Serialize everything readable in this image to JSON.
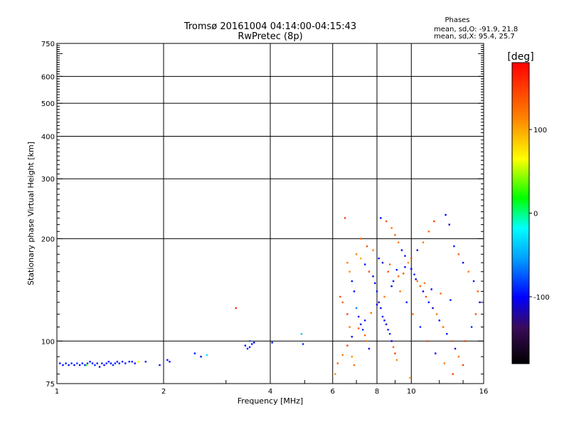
{
  "chart_data": {
    "type": "scatter",
    "title": "Tromsø 20161004 04:14:00-04:15:43",
    "subtitle": "RwPretec (8p)",
    "xlabel": "Frequency [MHz]",
    "ylabel": "Stationary phase Virtual Height [km]",
    "x_scale": "log",
    "y_scale": "log",
    "xlim": [
      1,
      16
    ],
    "ylim": [
      75,
      750
    ],
    "x_ticks": [
      1,
      2,
      4,
      6,
      8,
      10,
      16
    ],
    "x_tick_labels": [
      "1",
      "2",
      "4",
      "6",
      "8",
      "10",
      "16"
    ],
    "y_ticks": [
      75,
      100,
      200,
      300,
      400,
      500,
      600,
      750
    ],
    "y_tick_labels": [
      "75",
      "100",
      "200",
      "300",
      "400",
      "500",
      "600",
      "750"
    ],
    "grid": true,
    "phase_stats": {
      "heading": "Phases",
      "line_o": "mean, sd,O: -91.9, 21.8",
      "line_x": "mean, sd,X:  95.4, 25.7"
    },
    "colorbar": {
      "label": "[deg]",
      "range": [
        -180,
        180
      ],
      "ticks": [
        100,
        0,
        -100
      ],
      "tick_labels": [
        "100",
        "0",
        "-100"
      ]
    },
    "points": [
      [
        1.02,
        86,
        -95
      ],
      [
        1.04,
        85,
        -100
      ],
      [
        1.06,
        86,
        -92
      ],
      [
        1.08,
        85,
        -98
      ],
      [
        1.1,
        86,
        -90
      ],
      [
        1.12,
        85,
        -105
      ],
      [
        1.14,
        86,
        -88
      ],
      [
        1.16,
        85,
        -97
      ],
      [
        1.18,
        86,
        -93
      ],
      [
        1.2,
        85,
        -100
      ],
      [
        1.21,
        85,
        20
      ],
      [
        1.22,
        86,
        -90
      ],
      [
        1.24,
        87,
        -95
      ],
      [
        1.26,
        86,
        -99
      ],
      [
        1.28,
        85,
        -91
      ],
      [
        1.3,
        86,
        -96
      ],
      [
        1.32,
        84,
        -100
      ],
      [
        1.34,
        86,
        -94
      ],
      [
        1.36,
        85,
        -97
      ],
      [
        1.38,
        86,
        -92
      ],
      [
        1.4,
        87,
        -96
      ],
      [
        1.42,
        86,
        -100
      ],
      [
        1.44,
        85,
        -90
      ],
      [
        1.46,
        86,
        -93
      ],
      [
        1.48,
        87,
        -97
      ],
      [
        1.5,
        86,
        -95
      ],
      [
        1.53,
        87,
        -99
      ],
      [
        1.56,
        86,
        -92
      ],
      [
        1.6,
        87,
        -96
      ],
      [
        1.63,
        87,
        -94
      ],
      [
        1.66,
        86,
        -98
      ],
      [
        1.7,
        87,
        60
      ],
      [
        1.78,
        87,
        -95
      ],
      [
        1.95,
        85,
        -98
      ],
      [
        2.05,
        88,
        -94
      ],
      [
        2.08,
        87,
        -100
      ],
      [
        2.45,
        92,
        -95
      ],
      [
        2.55,
        90,
        -110
      ],
      [
        2.65,
        91,
        -30
      ],
      [
        3.2,
        125,
        160
      ],
      [
        3.4,
        97,
        -98
      ],
      [
        3.45,
        95,
        -94
      ],
      [
        3.5,
        96,
        -90
      ],
      [
        3.55,
        98,
        -96
      ],
      [
        3.6,
        99,
        -100
      ],
      [
        3.5,
        100,
        -70
      ],
      [
        4.05,
        99,
        -95
      ],
      [
        4.9,
        105,
        -40
      ],
      [
        4.95,
        98,
        -90
      ],
      [
        6.5,
        230,
        150
      ],
      [
        6.6,
        170,
        120
      ],
      [
        6.7,
        160,
        110
      ],
      [
        6.8,
        150,
        -95
      ],
      [
        6.9,
        140,
        -100
      ],
      [
        7.0,
        125,
        -60
      ],
      [
        7.1,
        118,
        -105
      ],
      [
        7.2,
        112,
        -95
      ],
      [
        7.3,
        108,
        -90
      ],
      [
        7.4,
        104,
        130
      ],
      [
        7.5,
        100,
        120
      ],
      [
        7.6,
        95,
        -100
      ],
      [
        6.3,
        135,
        140
      ],
      [
        6.4,
        130,
        130
      ],
      [
        6.6,
        120,
        150
      ],
      [
        6.7,
        110,
        120
      ],
      [
        6.8,
        90,
        110
      ],
      [
        6.9,
        85,
        125
      ],
      [
        7.0,
        180,
        115
      ],
      [
        7.2,
        175,
        100
      ],
      [
        7.4,
        168,
        -95
      ],
      [
        7.6,
        160,
        140
      ],
      [
        7.8,
        155,
        -110
      ],
      [
        7.9,
        148,
        -100
      ],
      [
        8.0,
        140,
        -95
      ],
      [
        8.1,
        130,
        -105
      ],
      [
        8.2,
        125,
        -98
      ],
      [
        8.3,
        118,
        -92
      ],
      [
        8.4,
        115,
        -100
      ],
      [
        8.5,
        112,
        -110
      ],
      [
        8.6,
        108,
        -95
      ],
      [
        8.7,
        105,
        -90
      ],
      [
        8.8,
        100,
        -100
      ],
      [
        8.9,
        96,
        130
      ],
      [
        9.0,
        92,
        150
      ],
      [
        9.1,
        88,
        110
      ],
      [
        8.2,
        230,
        -100
      ],
      [
        8.5,
        225,
        140
      ],
      [
        8.8,
        215,
        120
      ],
      [
        9.0,
        205,
        130
      ],
      [
        9.2,
        195,
        120
      ],
      [
        9.4,
        185,
        -100
      ],
      [
        9.6,
        178,
        -95
      ],
      [
        9.8,
        170,
        110
      ],
      [
        10.0,
        163,
        -100
      ],
      [
        10.2,
        157,
        -90
      ],
      [
        10.4,
        150,
        120
      ],
      [
        10.6,
        145,
        130
      ],
      [
        10.8,
        140,
        -100
      ],
      [
        11.0,
        135,
        140
      ],
      [
        11.2,
        130,
        -95
      ],
      [
        11.5,
        125,
        -110
      ],
      [
        11.8,
        120,
        120
      ],
      [
        12.0,
        115,
        -100
      ],
      [
        12.3,
        110,
        130
      ],
      [
        12.6,
        105,
        -95
      ],
      [
        13.0,
        100,
        140
      ],
      [
        13.3,
        95,
        -100
      ],
      [
        13.6,
        90,
        120
      ],
      [
        14.0,
        85,
        150
      ],
      [
        12.5,
        235,
        -100
      ],
      [
        12.8,
        220,
        -110
      ],
      [
        13.2,
        190,
        -95
      ],
      [
        13.6,
        180,
        130
      ],
      [
        14.0,
        170,
        -100
      ],
      [
        14.5,
        160,
        120
      ],
      [
        15.0,
        150,
        -95
      ],
      [
        15.4,
        140,
        130
      ],
      [
        15.6,
        130,
        -100
      ],
      [
        15.2,
        120,
        140
      ],
      [
        14.8,
        110,
        -90
      ],
      [
        14.2,
        100,
        150
      ],
      [
        11.6,
        225,
        150
      ],
      [
        11.2,
        210,
        130
      ],
      [
        10.8,
        195,
        120
      ],
      [
        10.4,
        185,
        -100
      ],
      [
        10.0,
        175,
        140
      ],
      [
        9.6,
        165,
        -100
      ],
      [
        9.2,
        155,
        130
      ],
      [
        8.8,
        145,
        -110
      ],
      [
        8.4,
        135,
        120
      ],
      [
        8.0,
        128,
        -100
      ],
      [
        7.7,
        121,
        130
      ],
      [
        7.4,
        115,
        -95
      ],
      [
        7.1,
        109,
        140
      ],
      [
        6.8,
        103,
        -100
      ],
      [
        6.6,
        97,
        150
      ],
      [
        6.4,
        91,
        120
      ],
      [
        6.2,
        86,
        130
      ],
      [
        6.1,
        80,
        110
      ],
      [
        8.3,
        170,
        -110
      ],
      [
        8.6,
        160,
        140
      ],
      [
        8.9,
        150,
        -95
      ],
      [
        9.3,
        140,
        120
      ],
      [
        9.7,
        130,
        -100
      ],
      [
        10.1,
        120,
        130
      ],
      [
        10.6,
        110,
        -90
      ],
      [
        11.1,
        100,
        140
      ],
      [
        11.7,
        92,
        -100
      ],
      [
        12.4,
        86,
        120
      ],
      [
        13.1,
        80,
        150
      ],
      [
        9.9,
        78,
        100
      ],
      [
        7.2,
        200,
        130
      ],
      [
        7.5,
        190,
        140
      ],
      [
        7.8,
        185,
        120
      ],
      [
        8.1,
        175,
        -100
      ],
      [
        8.7,
        168,
        130
      ],
      [
        9.1,
        162,
        -95
      ],
      [
        9.5,
        158,
        140
      ],
      [
        10.3,
        152,
        -100
      ],
      [
        10.9,
        148,
        120
      ],
      [
        11.4,
        142,
        -110
      ],
      [
        12.1,
        138,
        130
      ],
      [
        12.9,
        132,
        -95
      ]
    ]
  }
}
